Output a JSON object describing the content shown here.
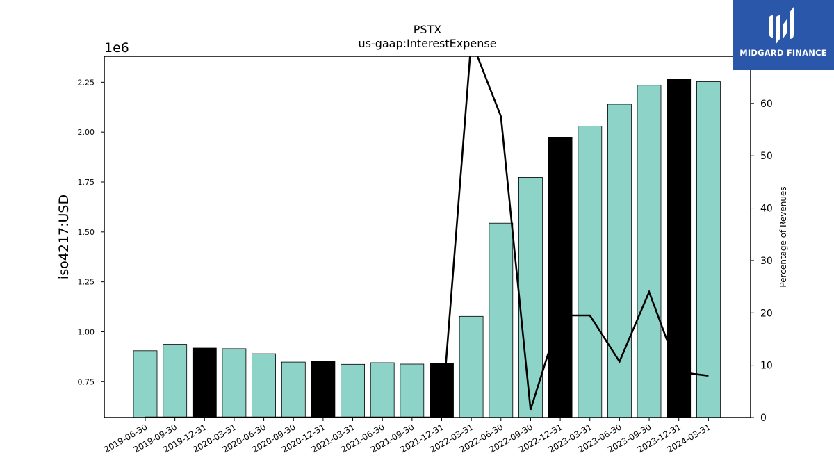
{
  "chart_data": {
    "type": "bar",
    "title": "PSTX",
    "subtitle": "us-gaap:InterestExpense",
    "ylabel": "iso4217:USD",
    "y_offset_label": "1e6",
    "y2label": "Percentage of Revenues",
    "ylim": [
      570000,
      2380000
    ],
    "y2lim": [
      0,
      69
    ],
    "yticks": [
      "0.75",
      "1.00",
      "1.25",
      "1.50",
      "1.75",
      "2.00",
      "2.25"
    ],
    "ytick_values": [
      750000,
      1000000,
      1250000,
      1500000,
      1750000,
      2000000,
      2250000
    ],
    "y2ticks": [
      0,
      10,
      20,
      30,
      40,
      50,
      60
    ],
    "categories": [
      "2019-06-30",
      "2019-09-30",
      "2019-12-31",
      "2020-03-31",
      "2020-06-30",
      "2020-09-30",
      "2020-12-31",
      "2021-03-31",
      "2021-06-30",
      "2021-09-30",
      "2021-12-31",
      "2022-03-31",
      "2022-06-30",
      "2022-09-30",
      "2022-12-31",
      "2023-03-31",
      "2023-06-30",
      "2023-09-30",
      "2023-12-31",
      "2024-03-31"
    ],
    "values": [
      905000,
      937000,
      918000,
      915000,
      890000,
      848000,
      853000,
      837000,
      845000,
      838000,
      843000,
      1077000,
      1544000,
      1773000,
      1975000,
      2030000,
      2140000,
      2235000,
      2265000,
      2253000
    ],
    "bar_colors": [
      "#8dd3c7",
      "#8dd3c7",
      "#000000",
      "#8dd3c7",
      "#8dd3c7",
      "#8dd3c7",
      "#000000",
      "#8dd3c7",
      "#8dd3c7",
      "#8dd3c7",
      "#000000",
      "#8dd3c7",
      "#8dd3c7",
      "#8dd3c7",
      "#000000",
      "#8dd3c7",
      "#8dd3c7",
      "#8dd3c7",
      "#000000",
      "#8dd3c7"
    ],
    "line_series": {
      "axis": "right",
      "color": "#000000",
      "values": [
        0,
        0,
        0,
        0,
        0,
        0,
        0,
        0,
        0,
        0,
        0,
        72,
        57.5,
        1.5,
        19.5,
        19.5,
        10.7,
        24,
        8.7,
        8
      ]
    },
    "grid": false
  },
  "brand": {
    "name": "MIDGARD FINANCE",
    "background": "#2b57ab"
  }
}
